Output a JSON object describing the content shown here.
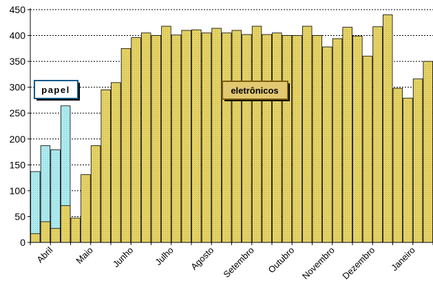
{
  "chart_data": {
    "type": "bar",
    "title": "",
    "xlabel": "",
    "ylabel": "",
    "ylim": [
      0,
      450
    ],
    "yticks": [
      0,
      50,
      100,
      150,
      200,
      250,
      300,
      350,
      400,
      450
    ],
    "grid": true,
    "x_tick_labels": [
      "Abril",
      "Maio",
      "Junho",
      "Julho",
      "Agosto",
      "Setembro",
      "Outubro",
      "Novembro",
      "Dezembro",
      "Janeiro"
    ],
    "x_tick_positions": [
      2,
      6,
      10,
      14,
      18,
      22,
      26,
      30,
      34,
      38
    ],
    "bar_count": 40,
    "series": [
      {
        "name": "papel",
        "color": "#a8e8ec",
        "start_index": 0,
        "values": [
          137,
          187,
          179,
          264
        ]
      },
      {
        "name": "eletrônicos",
        "color": "#e2d062",
        "start_index": 0,
        "values": [
          17,
          40,
          27,
          71,
          47,
          131,
          187,
          295,
          309,
          375,
          396,
          405,
          400,
          418,
          401,
          410,
          411,
          405,
          414,
          405,
          410,
          402,
          418,
          402,
          405,
          400,
          400,
          418,
          400,
          378,
          394,
          416,
          399,
          360,
          417,
          440,
          298,
          279,
          316,
          350
        ]
      }
    ],
    "annotations": [
      {
        "series": "papel",
        "text": "papel"
      },
      {
        "series": "eletrônicos",
        "text": "eletrônicos"
      }
    ]
  }
}
